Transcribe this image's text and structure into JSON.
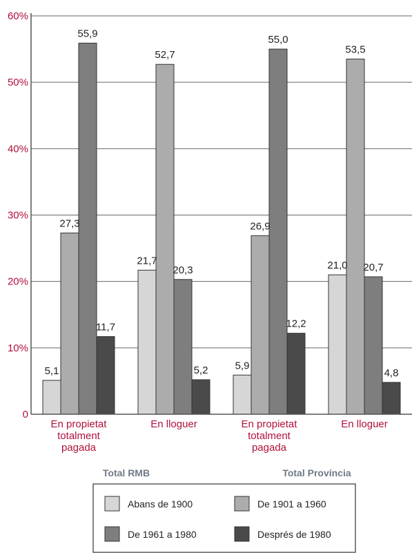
{
  "chart_data": {
    "type": "bar",
    "categories": [
      [
        "En propietat",
        "totalment",
        "pagada"
      ],
      [
        "En lloguer"
      ],
      [
        "En propietat",
        "totalment",
        "pagada"
      ],
      [
        "En lloguer"
      ]
    ],
    "groups": [
      "Total RMB",
      "Total Província"
    ],
    "series": [
      {
        "name": "Abans de 1900",
        "color": "#d6d6d6",
        "values": [
          5.1,
          21.7,
          5.9,
          21.0
        ],
        "labels": [
          "5,1",
          "21,7",
          "5,9",
          "21,0"
        ]
      },
      {
        "name": "De 1901 a 1960",
        "color": "#acacac",
        "values": [
          27.3,
          52.7,
          26.9,
          53.5
        ],
        "labels": [
          "27,3",
          "52,7",
          "26,9",
          "53,5"
        ]
      },
      {
        "name": "De 1961 a 1980",
        "color": "#7e7e7e",
        "values": [
          55.9,
          20.3,
          55.0,
          20.7
        ],
        "labels": [
          "55,9",
          "20,3",
          "55,0",
          "20,7"
        ]
      },
      {
        "name": "Després de 1980",
        "color": "#4a4a4a",
        "values": [
          11.7,
          5.2,
          12.2,
          4.8
        ],
        "labels": [
          "11,7",
          "5,2",
          "12,2",
          "4,8"
        ]
      }
    ],
    "ylim": [
      0,
      60
    ],
    "yticks": [
      {
        "value": 0,
        "label": "0"
      },
      {
        "value": 10,
        "label": "10%"
      },
      {
        "value": 20,
        "label": "20%"
      },
      {
        "value": 30,
        "label": "30%"
      },
      {
        "value": 40,
        "label": "40%"
      },
      {
        "value": 50,
        "label": "50%"
      },
      {
        "value": 60,
        "label": "60%"
      }
    ],
    "grid": true,
    "legend": "bottom"
  }
}
